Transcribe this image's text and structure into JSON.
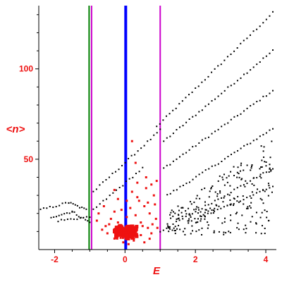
{
  "chart_data": {
    "type": "scatter",
    "title": "",
    "xlabel": "E",
    "ylabel": "<n>",
    "xlim": [
      -2.45,
      4.3
    ],
    "ylim": [
      0,
      135
    ],
    "x_ticks": [
      -2,
      0,
      2,
      4
    ],
    "y_ticks": [
      50,
      100
    ],
    "x_tick_labels": [
      "-2",
      "0",
      "2",
      "4"
    ],
    "y_tick_labels": [
      "50",
      "100"
    ],
    "grid": false,
    "vertical_lines": [
      {
        "x": -1.02,
        "color": "#008000",
        "width": 2
      },
      {
        "x": -0.95,
        "color": "#cc00cc",
        "width": 2
      },
      {
        "x": 0.02,
        "color": "#0000ff",
        "width": 4
      },
      {
        "x": 1.0,
        "color": "#cc00cc",
        "width": 2
      }
    ],
    "series": [
      {
        "color": "#000000",
        "marker": "dot",
        "lines": [
          {
            "x0": 0.9,
            "y0": 68,
            "x1": 4.2,
            "y1": 131
          },
          {
            "x0": 1.1,
            "y0": 60,
            "x1": 4.2,
            "y1": 110
          },
          {
            "x0": 1.1,
            "y0": 45,
            "x1": 4.2,
            "y1": 88
          },
          {
            "x0": 1.2,
            "y0": 30,
            "x1": 4.2,
            "y1": 67
          },
          {
            "x0": 1.0,
            "y0": 10,
            "x1": 4.2,
            "y1": 45
          },
          {
            "x0": 1.8,
            "y0": 15,
            "x1": 4.2,
            "y1": 35
          },
          {
            "x0": -0.9,
            "y0": 32,
            "x1": 1.0,
            "y1": 66
          },
          {
            "x0": -0.9,
            "y0": 22,
            "x1": 0.5,
            "y1": 45
          },
          {
            "x0": -2.4,
            "y0": 22,
            "x1": -1.6,
            "y1": 26
          },
          {
            "x0": -1.6,
            "y0": 26,
            "x1": -1.1,
            "y1": 22
          },
          {
            "x0": -2.1,
            "y0": 18,
            "x1": -1.5,
            "y1": 21
          },
          {
            "x0": -1.5,
            "y0": 21,
            "x1": -1.0,
            "y1": 15
          },
          {
            "x0": -1.9,
            "y0": 16,
            "x1": -1.0,
            "y1": 18
          }
        ],
        "scatter_region": {
          "x": [
            1.2,
            4.2
          ],
          "y": [
            8,
            62
          ]
        }
      },
      {
        "color": "#ee1111",
        "marker": "square",
        "cluster": {
          "x": [
            -0.3,
            0.35
          ],
          "y": [
            6,
            13
          ]
        },
        "sparse": [
          [
            -0.65,
            11
          ],
          [
            -0.55,
            13
          ],
          [
            -0.5,
            9
          ],
          [
            -0.45,
            14
          ],
          [
            -0.4,
            17
          ],
          [
            -0.3,
            21
          ],
          [
            -0.2,
            15
          ],
          [
            -0.15,
            10
          ],
          [
            0.05,
            18
          ],
          [
            0.15,
            23
          ],
          [
            0.3,
            19
          ],
          [
            0.35,
            29
          ],
          [
            0.4,
            27
          ],
          [
            0.45,
            15
          ],
          [
            0.5,
            13
          ],
          [
            0.55,
            24
          ],
          [
            0.6,
            34
          ],
          [
            0.65,
            26
          ],
          [
            0.7,
            20
          ],
          [
            0.75,
            9
          ],
          [
            0.78,
            14
          ],
          [
            0.82,
            30
          ],
          [
            0.85,
            25
          ],
          [
            0.88,
            17
          ],
          [
            0.9,
            38
          ],
          [
            0.92,
            12
          ],
          [
            0.6,
            40
          ],
          [
            0.3,
            48
          ],
          [
            0.2,
            60
          ],
          [
            0.05,
            27
          ],
          [
            -0.1,
            22
          ],
          [
            -0.3,
            33
          ],
          [
            -0.6,
            24
          ],
          [
            -0.75,
            20
          ],
          [
            -0.8,
            16
          ],
          [
            0.1,
            3
          ],
          [
            0.25,
            5
          ],
          [
            -0.05,
            4
          ],
          [
            0.7,
            6
          ],
          [
            0.45,
            8
          ],
          [
            0.55,
            4
          ],
          [
            0.35,
            37
          ],
          [
            0.65,
            12
          ],
          [
            0.2,
            32
          ],
          [
            -0.2,
            28
          ],
          [
            0.75,
            36
          ]
        ]
      }
    ]
  }
}
